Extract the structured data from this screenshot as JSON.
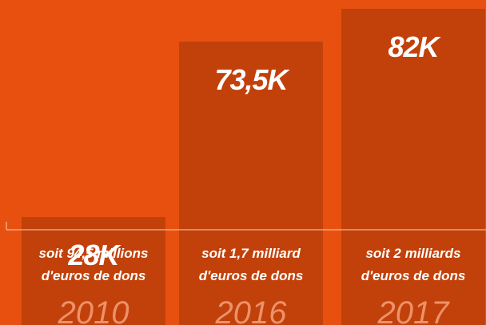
{
  "chart_data": {
    "type": "bar",
    "categories": [
      "2010",
      "2016",
      "2017"
    ],
    "values": [
      28,
      73.5,
      82
    ],
    "value_labels": [
      "28K",
      "73,5K",
      "82K"
    ],
    "captions": [
      [
        "soit 94,5 millions",
        "d'euros de dons"
      ],
      [
        "soit 1,7 milliard",
        "d'euros de dons"
      ],
      [
        "soit 2 milliards",
        "d'euros de dons"
      ]
    ],
    "ylim": [
      0,
      82
    ],
    "grid": false,
    "colors": {
      "background": "#e8500f",
      "bar": "#c2410a",
      "text": "#ffffff",
      "year": "#f4a07a",
      "axis": "#f5d0bf"
    }
  }
}
